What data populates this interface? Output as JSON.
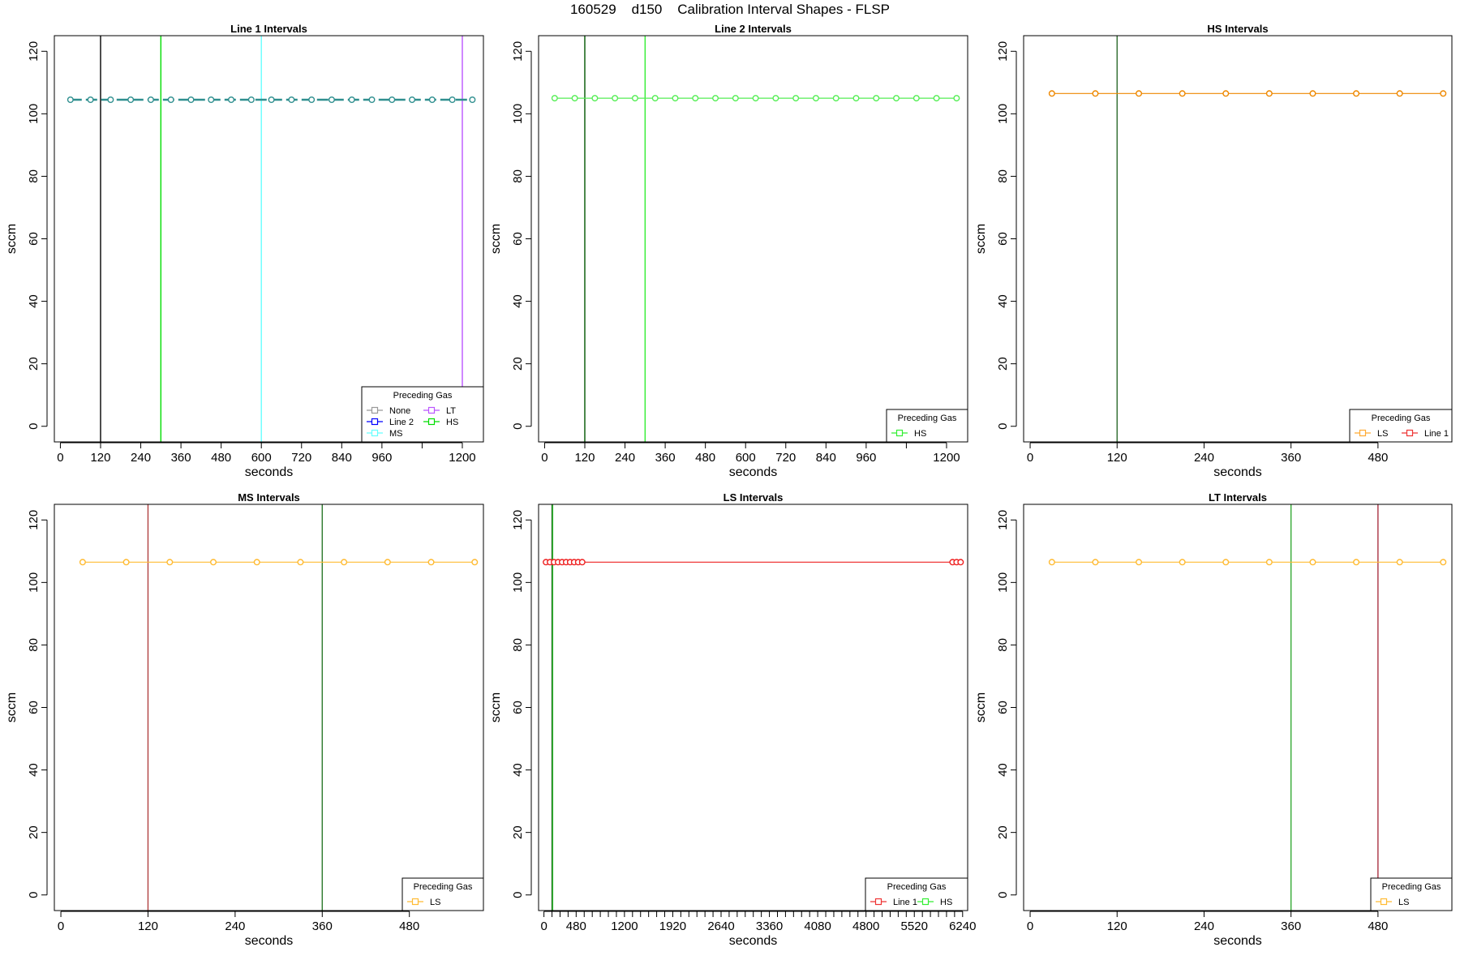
{
  "figure": {
    "title": "160529    d150    Calibration Interval Shapes - FLSP"
  },
  "chart_data": [
    {
      "type": "line",
      "title": "Line 1 Intervals",
      "xlabel": "seconds",
      "ylabel": "sccm",
      "xlim": [
        -18,
        1263
      ],
      "ylim": [
        -5,
        125
      ],
      "xticks": [
        0,
        120,
        240,
        360,
        480,
        600,
        720,
        840,
        960,
        1080,
        1200
      ],
      "xtick_labels": [
        "0",
        "120",
        "240",
        "360",
        "480",
        "600",
        "720",
        "840",
        "960",
        "",
        "1200"
      ],
      "yticks": [
        0,
        20,
        40,
        60,
        80,
        100,
        120
      ],
      "vlines": [
        {
          "x": 120,
          "color": "#000000"
        },
        {
          "x": 300,
          "color": "#00dd00"
        },
        {
          "x": 600,
          "color": "#66ffff"
        },
        {
          "x": 1200,
          "color": "#bb55ff"
        }
      ],
      "series": [
        {
          "name": "Line 2",
          "color": "#2f8f8f",
          "dashed": true,
          "x": [
            30,
            90,
            150,
            210,
            270,
            330,
            390,
            450,
            510,
            570,
            630,
            690,
            750,
            810,
            870,
            930,
            990,
            1050,
            1110,
            1170,
            1230
          ],
          "y": [
            104.5,
            104.5,
            104.5,
            104.5,
            104.5,
            104.5,
            104.5,
            104.5,
            104.5,
            104.5,
            104.5,
            104.5,
            104.5,
            104.5,
            104.5,
            104.5,
            104.5,
            104.5,
            104.5,
            104.5,
            104.5
          ]
        }
      ],
      "legend": {
        "title": "Preceding Gas",
        "position": "bottom-right",
        "entries": [
          {
            "label": "None",
            "color": "#999999"
          },
          {
            "label": "LT",
            "color": "#bb55ff"
          },
          {
            "label": "Line 2",
            "color": "#0000ff"
          },
          {
            "label": "HS",
            "color": "#00dd00"
          },
          {
            "label": "MS",
            "color": "#66ffff"
          }
        ]
      }
    },
    {
      "type": "line",
      "title": "Line 2 Intervals",
      "xlabel": "seconds",
      "ylabel": "sccm",
      "xlim": [
        -18,
        1263
      ],
      "ylim": [
        -5,
        125
      ],
      "xticks": [
        0,
        120,
        240,
        360,
        480,
        600,
        720,
        840,
        960,
        1080,
        1200
      ],
      "xtick_labels": [
        "0",
        "120",
        "240",
        "360",
        "480",
        "600",
        "720",
        "840",
        "960",
        "",
        "1200"
      ],
      "yticks": [
        0,
        20,
        40,
        60,
        80,
        100,
        120
      ],
      "vlines": [
        {
          "x": 120,
          "color": "#005500"
        },
        {
          "x": 300,
          "color": "#33ee33"
        }
      ],
      "series": [
        {
          "name": "HS",
          "color": "#55ee55",
          "dashed": false,
          "x": [
            30,
            90,
            150,
            210,
            270,
            330,
            390,
            450,
            510,
            570,
            630,
            690,
            750,
            810,
            870,
            930,
            990,
            1050,
            1110,
            1170,
            1230
          ],
          "y": [
            105,
            105,
            105,
            105,
            105,
            105,
            105,
            105,
            105,
            105,
            105,
            105,
            105,
            105,
            105,
            105,
            105,
            105,
            105,
            105,
            105
          ]
        }
      ],
      "legend": {
        "title": "Preceding Gas",
        "position": "bottom-right",
        "entries": [
          {
            "label": "HS",
            "color": "#33ee33"
          }
        ]
      }
    },
    {
      "type": "line",
      "title": "HS Intervals",
      "xlabel": "seconds",
      "ylabel": "sccm",
      "xlim": [
        -9,
        582
      ],
      "ylim": [
        -5,
        125
      ],
      "xticks": [
        0,
        120,
        240,
        360,
        480
      ],
      "xtick_labels": [
        "0",
        "120",
        "240",
        "360",
        "480"
      ],
      "yticks": [
        0,
        20,
        40,
        60,
        80,
        100,
        120
      ],
      "vlines": [
        {
          "x": 120,
          "color": "#2d6a2d"
        }
      ],
      "series": [
        {
          "name": "LS",
          "color": "#ee8800",
          "dashed": false,
          "x": [
            30,
            90,
            150,
            210,
            270,
            330,
            390,
            450,
            510,
            570
          ],
          "y": [
            106.5,
            106.5,
            106.5,
            106.5,
            106.5,
            106.5,
            106.5,
            106.5,
            106.5,
            106.5
          ]
        }
      ],
      "legend": {
        "title": "Preceding Gas",
        "position": "bottom-right",
        "entries": [
          {
            "label": "LS",
            "color": "#ffaa33"
          },
          {
            "label": "Line 1",
            "color": "#ee3333"
          }
        ]
      }
    },
    {
      "type": "line",
      "title": "MS Intervals",
      "xlabel": "seconds",
      "ylabel": "sccm",
      "xlim": [
        -9,
        582
      ],
      "ylim": [
        -5,
        125
      ],
      "xticks": [
        0,
        120,
        240,
        360,
        480
      ],
      "xtick_labels": [
        "0",
        "120",
        "240",
        "360",
        "480"
      ],
      "yticks": [
        0,
        20,
        40,
        60,
        80,
        100,
        120
      ],
      "vlines": [
        {
          "x": 120,
          "color": "#b04040"
        },
        {
          "x": 360,
          "color": "#2d7a2d"
        }
      ],
      "series": [
        {
          "name": "LS",
          "color": "#ffbb33",
          "dashed": false,
          "x": [
            30,
            90,
            150,
            210,
            270,
            330,
            390,
            450,
            510,
            570
          ],
          "y": [
            106.5,
            106.5,
            106.5,
            106.5,
            106.5,
            106.5,
            106.5,
            106.5,
            106.5,
            106.5
          ]
        }
      ],
      "legend": {
        "title": "Preceding Gas",
        "position": "bottom-right",
        "entries": [
          {
            "label": "LS",
            "color": "#ffbb33"
          }
        ]
      }
    },
    {
      "type": "line",
      "title": "LS Intervals",
      "xlabel": "seconds",
      "ylabel": "sccm",
      "xlim": [
        -80,
        6315
      ],
      "ylim": [
        -5,
        125
      ],
      "xticks": [
        0,
        120,
        240,
        360,
        480,
        600,
        720,
        840,
        960,
        1080,
        1200,
        1320,
        1440,
        1560,
        1680,
        1800,
        1920,
        2040,
        2160,
        2280,
        2400,
        2520,
        2640,
        2760,
        2880,
        3000,
        3120,
        3240,
        3360,
        3480,
        3600,
        3720,
        3840,
        3960,
        4080,
        4200,
        4320,
        4440,
        4560,
        4680,
        4800,
        4920,
        5040,
        5160,
        5280,
        5400,
        5520,
        5640,
        5760,
        5880,
        6000,
        6120,
        6240
      ],
      "xtick_labels": [
        "0",
        "",
        "",
        "",
        "480",
        "",
        "",
        "",
        "",
        "",
        "1200",
        "",
        "",
        "",
        "",
        "",
        "1920",
        "",
        "",
        "",
        "",
        "",
        "2640",
        "",
        "",
        "",
        "",
        "",
        "3360",
        "",
        "",
        "",
        "",
        "",
        "4080",
        "",
        "",
        "",
        "",
        "",
        "4800",
        "",
        "",
        "",
        "",
        "",
        "5520",
        "",
        "",
        "",
        "",
        "",
        "6240"
      ],
      "yticks": [
        0,
        20,
        40,
        60,
        80,
        100,
        120
      ],
      "vlines": [
        {
          "x": 120,
          "color": "#1a5a1a"
        },
        {
          "x": 130,
          "color": "#33bb33"
        }
      ],
      "series": [
        {
          "name": "Line 1",
          "color": "#ee2222",
          "dashed": false,
          "x": [
            30,
            90,
            150,
            210,
            270,
            330,
            390,
            450,
            510,
            570,
            6090,
            6150,
            6210
          ],
          "y": [
            106.5,
            106.5,
            106.5,
            106.5,
            106.5,
            106.5,
            106.5,
            106.5,
            106.5,
            106.5,
            106.5,
            106.5,
            106.5
          ]
        }
      ],
      "legend": {
        "title": "Preceding Gas",
        "position": "bottom-right",
        "entries": [
          {
            "label": "Line 1",
            "color": "#ee3333"
          },
          {
            "label": "HS",
            "color": "#33ee33"
          }
        ]
      }
    },
    {
      "type": "line",
      "title": "LT Intervals",
      "xlabel": "seconds",
      "ylabel": "sccm",
      "xlim": [
        -9,
        582
      ],
      "ylim": [
        -5,
        125
      ],
      "xticks": [
        0,
        120,
        240,
        360,
        480
      ],
      "xtick_labels": [
        "0",
        "120",
        "240",
        "360",
        "480"
      ],
      "yticks": [
        0,
        20,
        40,
        60,
        80,
        100,
        120
      ],
      "vlines": [
        {
          "x": 360,
          "color": "#33aa33"
        },
        {
          "x": 480,
          "color": "#aa3344"
        }
      ],
      "series": [
        {
          "name": "LS",
          "color": "#ffbb33",
          "dashed": false,
          "x": [
            30,
            90,
            150,
            210,
            270,
            330,
            390,
            450,
            510,
            570
          ],
          "y": [
            106.5,
            106.5,
            106.5,
            106.5,
            106.5,
            106.5,
            106.5,
            106.5,
            106.5,
            106.5
          ]
        }
      ],
      "legend": {
        "title": "Preceding Gas",
        "position": "bottom-right",
        "entries": [
          {
            "label": "LS",
            "color": "#ffbb33"
          }
        ]
      }
    }
  ]
}
